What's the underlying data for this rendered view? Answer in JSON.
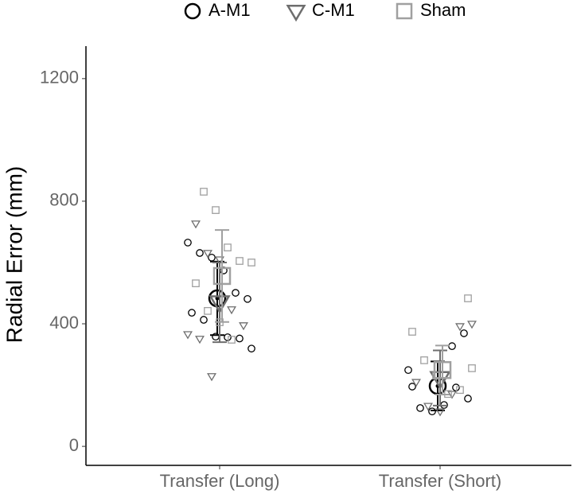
{
  "chart_data": {
    "type": "scatter",
    "y_label": "Radial Error (mm)",
    "categories": [
      "Transfer (Long)",
      "Transfer (Short)"
    ],
    "ylim": [
      -62,
      1306
    ],
    "yticks": [
      0,
      400,
      800,
      1200
    ],
    "series": [
      {
        "name": "A-M1",
        "color": "#000000",
        "marker": "circle",
        "points": [
          [
            665,
            631,
            616,
            574,
            501,
            481,
            436,
            413,
            358,
            356,
            352,
            319
          ],
          [
            327,
            369,
            249,
            125,
            114,
            135,
            192,
            156,
            195
          ]
        ],
        "means": [
          483,
          197
        ],
        "errors": [
          120,
          80
        ]
      },
      {
        "name": "C-M1",
        "color": "#6e6e6e",
        "marker": "triangle",
        "points": [
          [
            727,
            631,
            610,
            447,
            395,
            366,
            351,
            229
          ],
          [
            392,
            400,
            210,
            132,
            114,
            171
          ]
        ],
        "means": [
          470,
          223
        ],
        "errors": [
          130,
          90
        ]
      },
      {
        "name": "Sham",
        "color": "#a0a0a0",
        "marker": "square",
        "points": [
          [
            831,
            771,
            649,
            605,
            600,
            532,
            442,
            405,
            348
          ],
          [
            483,
            374,
            281,
            231,
            171,
            184,
            255
          ]
        ],
        "means": [
          556,
          249
        ],
        "errors": [
          150,
          80
        ]
      }
    ]
  }
}
